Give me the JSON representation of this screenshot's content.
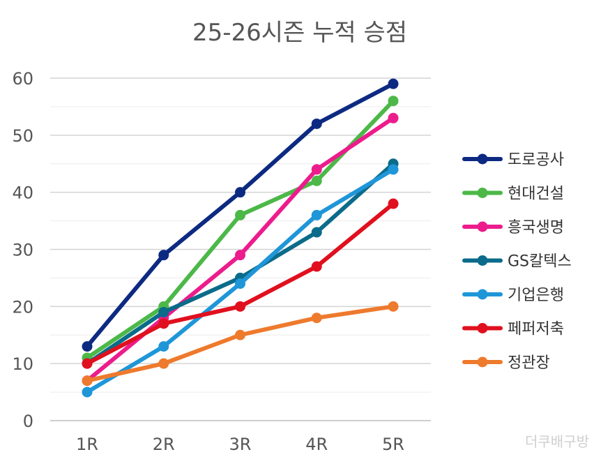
{
  "chart_data": {
    "type": "line",
    "title": "25-26시즌 누적 승점",
    "categories": [
      "1R",
      "2R",
      "3R",
      "4R",
      "5R"
    ],
    "ylim": [
      0,
      60
    ],
    "yticks": [
      0,
      10,
      20,
      30,
      40,
      50,
      60
    ],
    "grid": "horizontal",
    "legend_position": "right",
    "xlabel": "",
    "ylabel": "",
    "series": [
      {
        "name": "도로공사",
        "color": "#0d2a82",
        "values": [
          13,
          29,
          40,
          52,
          59
        ]
      },
      {
        "name": "현대건설",
        "color": "#4cb848",
        "values": [
          11,
          20,
          36,
          42,
          56
        ]
      },
      {
        "name": "흥국생명",
        "color": "#ec1c8c",
        "values": [
          7,
          18,
          29,
          44,
          53
        ]
      },
      {
        "name": "GS칼텍스",
        "color": "#0b6b8a",
        "values": [
          10,
          19,
          25,
          33,
          45
        ]
      },
      {
        "name": "기업은행",
        "color": "#1f96d8",
        "values": [
          5,
          13,
          24,
          36,
          44
        ]
      },
      {
        "name": "페퍼저축",
        "color": "#e0101e",
        "values": [
          10,
          17,
          20,
          27,
          38
        ]
      },
      {
        "name": "정관장",
        "color": "#ee7a2d",
        "values": [
          7,
          10,
          15,
          18,
          20
        ]
      }
    ]
  },
  "watermark": "더쿠배구방"
}
